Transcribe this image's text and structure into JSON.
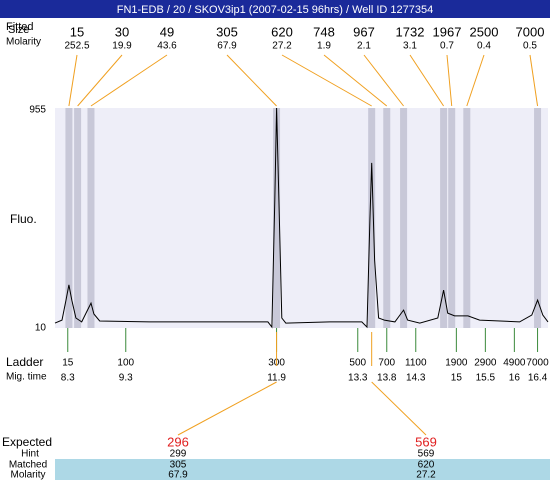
{
  "title": "FN1-EDB / 20 / SKOV3ip1 (2007-02-15 96hrs) / Well ID 1277354",
  "chart_data": {
    "type": "line",
    "y_label": "Fluo.",
    "x": [
      8.08,
      8.2,
      8.27,
      8.32,
      8.37,
      8.44,
      8.54,
      8.64,
      8.7,
      8.75,
      8.85,
      9.71,
      10.92,
      11.75,
      11.82,
      11.87,
      11.9,
      11.94,
      11.99,
      12.06,
      12.82,
      13.37,
      13.46,
      13.51,
      13.54,
      13.59,
      13.66,
      13.76,
      13.94,
      14.04,
      14.09,
      14.16,
      14.37,
      14.68,
      14.78,
      14.85,
      14.97,
      15.2,
      15.4,
      16.09,
      16.3,
      16.4,
      16.49,
      16.58
    ],
    "values": [
      31,
      44,
      130,
      195,
      130,
      53,
      36,
      87,
      117,
      70,
      40,
      36,
      36,
      36,
      14,
      560,
      955,
      560,
      53,
      31,
      36,
      36,
      14,
      474,
      719,
      302,
      53,
      44,
      36,
      70,
      87,
      44,
      31,
      53,
      173,
      74,
      62,
      62,
      44,
      36,
      66,
      130,
      66,
      36
    ],
    "color": "#000000",
    "background": "#eeeef8",
    "band_color": "#c8c8d8",
    "xlim": [
      8.08,
      16.58
    ],
    "ylim": [
      10,
      955
    ],
    "yticks": [
      955,
      10
    ]
  },
  "peaks": {
    "fitted_label": "Fitted",
    "size_label": "Size",
    "molarity_label": "Molarity",
    "line_color": "#f0a020",
    "items": [
      {
        "size": 15,
        "molarity": 252.5,
        "time": 8.32
      },
      {
        "size": 30,
        "molarity": 19.9,
        "time": 8.47
      },
      {
        "size": 49,
        "molarity": 43.6,
        "time": 8.7
      },
      {
        "size": 305,
        "molarity": 67.9,
        "time": 11.9
      },
      {
        "size": 620,
        "molarity": 27.2,
        "time": 13.54
      },
      {
        "size": 748,
        "molarity": 1.9,
        "time": 13.8
      },
      {
        "size": 967,
        "molarity": 2.1,
        "time": 14.09
      },
      {
        "size": 1732,
        "molarity": 3.1,
        "time": 14.78
      },
      {
        "size": 1967,
        "molarity": 0.7,
        "time": 14.92
      },
      {
        "size": 2500,
        "molarity": 0.4,
        "time": 15.18
      },
      {
        "size": 7000,
        "molarity": 0.5,
        "time": 16.4
      }
    ]
  },
  "ladder": {
    "label": "Ladder",
    "time_label": "Mig. time",
    "color": "#3a8a3a",
    "items": [
      {
        "size": 15,
        "time": 8.3
      },
      {
        "size": 100,
        "time": 9.3
      },
      {
        "size": 300,
        "time": 11.9
      },
      {
        "size": 500,
        "time": 13.3
      },
      {
        "size": 700,
        "time": 13.8
      },
      {
        "size": 1100,
        "time": 14.3
      },
      {
        "size": 1900,
        "time": 15
      },
      {
        "size": 2900,
        "time": 15.5
      },
      {
        "size": 4900,
        "time": 16
      },
      {
        "size": 7000,
        "time": 16.4
      }
    ]
  },
  "matches": {
    "expected_label": "Expected",
    "hint_label": "Hint",
    "matched_label": "Matched",
    "molarity_label": "Molarity",
    "expected_color": "#e02020",
    "row_color": "#add8e6",
    "items": [
      {
        "expected": 296,
        "hint": 299,
        "matched": 305,
        "molarity": 67.9
      },
      {
        "expected": 569,
        "hint": 569,
        "matched": 620,
        "molarity": 27.2
      }
    ]
  }
}
